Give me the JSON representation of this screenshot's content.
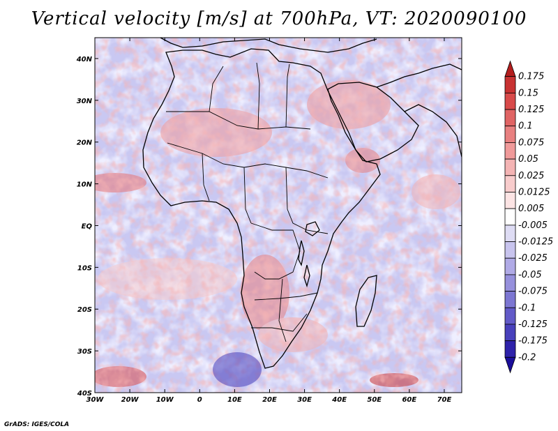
{
  "title": "Vertical velocity [m/s] at 700hPa, VT: 2020090100",
  "footer": "GrADS: IGES/COLA",
  "map": {
    "lon_range": [
      -30,
      75
    ],
    "lat_range": [
      -40,
      45
    ],
    "lat_ticks": [
      {
        "value": 40,
        "label": "40N"
      },
      {
        "value": 30,
        "label": "30N"
      },
      {
        "value": 20,
        "label": "20N"
      },
      {
        "value": 10,
        "label": "10N"
      },
      {
        "value": 0,
        "label": "EQ"
      },
      {
        "value": -10,
        "label": "10S"
      },
      {
        "value": -20,
        "label": "20S"
      },
      {
        "value": -30,
        "label": "30S"
      },
      {
        "value": -40,
        "label": "40S"
      }
    ],
    "lon_ticks": [
      {
        "value": -30,
        "label": "30W"
      },
      {
        "value": -20,
        "label": "20W"
      },
      {
        "value": -10,
        "label": "10W"
      },
      {
        "value": 0,
        "label": "0"
      },
      {
        "value": 10,
        "label": "10E"
      },
      {
        "value": 20,
        "label": "20E"
      },
      {
        "value": 30,
        "label": "30E"
      },
      {
        "value": 40,
        "label": "40E"
      },
      {
        "value": 50,
        "label": "50E"
      },
      {
        "value": 60,
        "label": "60E"
      },
      {
        "value": 70,
        "label": "70E"
      }
    ]
  },
  "colorbar": {
    "labels": [
      "0.175",
      "0.15",
      "0.125",
      "0.1",
      "0.075",
      "0.05",
      "0.025",
      "0.0125",
      "0.005",
      "-0.005",
      "-0.0125",
      "-0.025",
      "-0.05",
      "-0.075",
      "-0.1",
      "-0.125",
      "-0.175",
      "-0.2"
    ],
    "colors": [
      "#b41e1e",
      "#c83232",
      "#d84a4a",
      "#e06464",
      "#e88080",
      "#f09a9a",
      "#f4b4b4",
      "#f8cccc",
      "#fce4e4",
      "#ffffff",
      "#dedcf4",
      "#c8c4ee",
      "#b0aae6",
      "#9690dc",
      "#7c76d2",
      "#625ac8",
      "#4840bc",
      "#2e22aa",
      "#1a0e9a"
    ]
  }
}
